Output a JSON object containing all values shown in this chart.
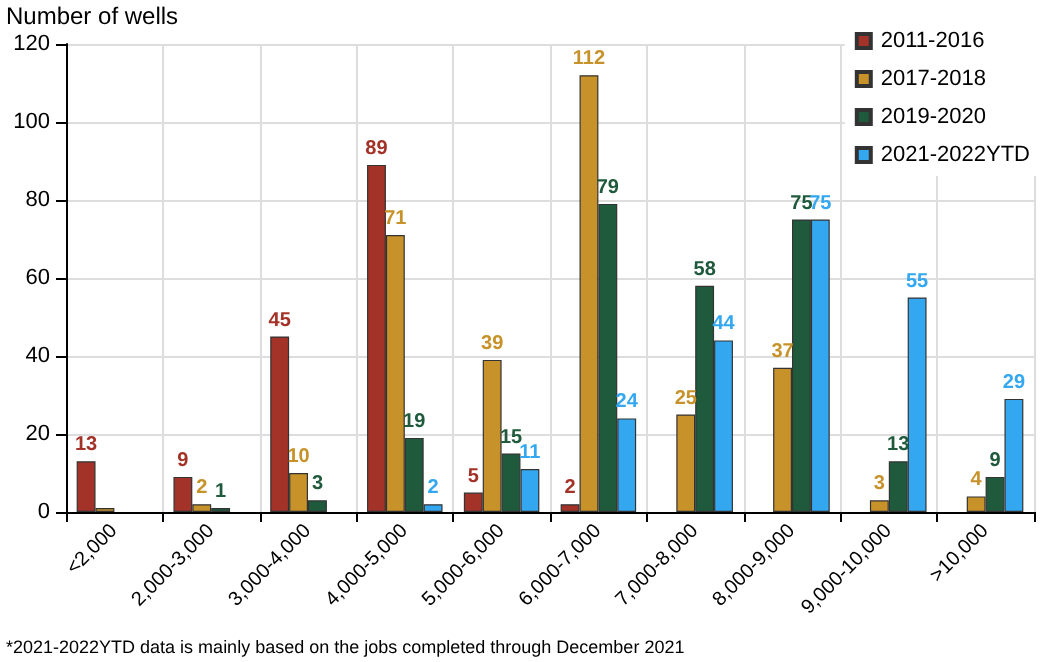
{
  "chart_data": {
    "type": "bar",
    "ylabel": "Number of wells",
    "categories": [
      "<2,000",
      "2,000-3,000",
      "3,000-4,000",
      "4,000-5,000",
      "5,000-6,000",
      "6,000-7,000",
      "7,000-8,000",
      "8,000-9,000",
      "9,000-10,000",
      ">10,000"
    ],
    "series": [
      {
        "name": "2011-2016",
        "color": "#a33228",
        "values": [
          13,
          9,
          45,
          89,
          5,
          2,
          null,
          null,
          null,
          null
        ],
        "value_labels": [
          "13",
          "9",
          "45",
          "89",
          "5",
          "2",
          null,
          null,
          null,
          null
        ]
      },
      {
        "name": "2017-2018",
        "color": "#c8922a",
        "values": [
          1,
          2,
          10,
          71,
          39,
          112,
          25,
          37,
          3,
          4
        ],
        "value_labels": [
          null,
          "2",
          "10",
          "71",
          "39",
          "112",
          "25",
          "37",
          "3",
          "4"
        ]
      },
      {
        "name": "2019-2020",
        "color": "#1f5a3c",
        "values": [
          null,
          1,
          3,
          19,
          15,
          79,
          58,
          75,
          13,
          9
        ],
        "value_labels": [
          null,
          "1",
          "3",
          "19",
          "15",
          "79",
          "58",
          "75",
          "13",
          "9"
        ]
      },
      {
        "name": "2021-2022YTD",
        "color": "#33a8f0",
        "values": [
          null,
          null,
          null,
          2,
          11,
          24,
          44,
          75,
          55,
          29
        ],
        "value_labels": [
          null,
          null,
          null,
          "2",
          "11",
          "24",
          "44",
          "75",
          "55",
          "29"
        ]
      }
    ],
    "ylim": [
      0,
      120
    ],
    "yticks": [
      0,
      20,
      40,
      60,
      80,
      100,
      120
    ],
    "grid": true,
    "legend": "top right",
    "annotations": [
      "*2021-2022YTD data is mainly based on the jobs completed through December 2021"
    ]
  }
}
